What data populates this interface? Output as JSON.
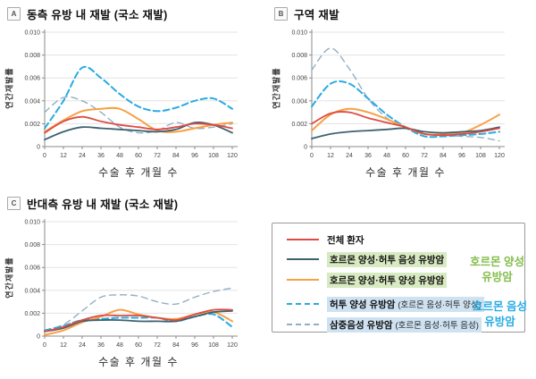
{
  "colors": {
    "red": "#DE4B43",
    "slate": "#3E616F",
    "orange": "#F6A145",
    "blue": "#29ABE2",
    "grayblue": "#92AFC2",
    "green_text": "#85BE4E",
    "blue_text": "#2AACE3",
    "green_highlight": "#D8EAC1",
    "blue_highlight": "#CFE2F1",
    "axis": "#8A8A8A",
    "grid": "#E3E3E3",
    "tick_text": "#444444"
  },
  "legend": {
    "items": [
      {
        "key": "all",
        "label": "전체 환자",
        "sublabel": "",
        "color_key": "red",
        "dash": "",
        "width": 1.8,
        "highlight": ""
      },
      {
        "key": "hr_pos_her2_neg",
        "label": "호르몬 양성·허투 음성 유방암",
        "sublabel": "",
        "color_key": "slate",
        "dash": "",
        "width": 1.8,
        "highlight": "green"
      },
      {
        "key": "hr_pos_her2_pos",
        "label": "호르몬 양성·허투 양성 유방암",
        "sublabel": "",
        "color_key": "orange",
        "dash": "",
        "width": 2,
        "highlight": "green"
      },
      {
        "key": "her2_pos",
        "label": "허투 양성 유방암",
        "sublabel": "(호르몬 음성·허투 양성)",
        "color_key": "blue",
        "dash": "7 4",
        "width": 2,
        "highlight": "blue"
      },
      {
        "key": "tnbc",
        "label": "삼중음성 유방암",
        "sublabel": "(호르몬 음성·허투 음성)",
        "color_key": "grayblue",
        "dash": "7 5",
        "width": 1.4,
        "highlight": "blue"
      }
    ],
    "annotations": {
      "hormone_positive": {
        "line1": "호르몬 양성",
        "line2": "유방암",
        "color_key": "green_text"
      },
      "hormone_negative": {
        "line1": "호르몬 음성",
        "line2": "유방암",
        "color_key": "blue_text"
      }
    }
  },
  "chart_data": [
    {
      "type": "line",
      "panel_label": "A",
      "title": "동측 유방 내 재발 (국소 재발)",
      "xlabel": "수술 후 개월 수",
      "ylabel": "연간재발률",
      "x": [
        0,
        12,
        24,
        36,
        48,
        60,
        72,
        84,
        96,
        108,
        120
      ],
      "xlim": [
        0,
        120
      ],
      "ylim": [
        0,
        0.01
      ],
      "yticks": [
        0,
        0.002,
        0.004,
        0.006,
        0.008,
        0.01
      ],
      "grid": true,
      "legend_position": "external-box",
      "series": [
        {
          "key": "tnbc",
          "name": "삼중음성 유방암 (호르몬 음성·허투 음성)",
          "values": [
            0.003,
            0.0043,
            0.004,
            0.003,
            0.0017,
            0.0012,
            0.0014,
            0.0021,
            0.0016,
            0.0017,
            0.002
          ]
        },
        {
          "key": "her2_pos",
          "name": "허투 양성 유방암 (호르몬 음성·허투 양성)",
          "values": [
            0.0016,
            0.004,
            0.0069,
            0.006,
            0.0046,
            0.0035,
            0.0031,
            0.0034,
            0.004,
            0.0042,
            0.0033
          ]
        },
        {
          "key": "hr_pos_her2_pos",
          "name": "호르몬 양성·허투 양성 유방암",
          "values": [
            0.0013,
            0.0023,
            0.0031,
            0.0033,
            0.0033,
            0.0024,
            0.0014,
            0.0013,
            0.0016,
            0.0019,
            0.0021
          ]
        },
        {
          "key": "hr_pos_her2_neg",
          "name": "호르몬 양성·허투 음성 유방암",
          "values": [
            0.0006,
            0.0013,
            0.0017,
            0.0016,
            0.0015,
            0.0014,
            0.0013,
            0.0015,
            0.0021,
            0.0019,
            0.0012
          ]
        },
        {
          "key": "all",
          "name": "전체 환자",
          "values": [
            0.0012,
            0.0022,
            0.0026,
            0.0022,
            0.0019,
            0.0017,
            0.0015,
            0.0017,
            0.002,
            0.0019,
            0.0016
          ]
        }
      ]
    },
    {
      "type": "line",
      "panel_label": "B",
      "title": "구역 재발",
      "xlabel": "수술 후 개월 수",
      "ylabel": "연간재발률",
      "x": [
        0,
        12,
        24,
        36,
        48,
        60,
        72,
        84,
        96,
        108,
        120
      ],
      "xlim": [
        0,
        120
      ],
      "ylim": [
        0,
        0.01
      ],
      "yticks": [
        0,
        0.002,
        0.004,
        0.006,
        0.008,
        0.01
      ],
      "grid": true,
      "legend_position": "external-box",
      "series": [
        {
          "key": "tnbc",
          "name": "삼중음성 유방암 (호르몬 음성·허투 음성)",
          "values": [
            0.0067,
            0.0086,
            0.0068,
            0.0042,
            0.0025,
            0.0016,
            0.0011,
            0.001,
            0.0009,
            0.0008,
            0.0005
          ]
        },
        {
          "key": "her2_pos",
          "name": "허투 양성 유방암 (호르몬 음성·허투 양성)",
          "values": [
            0.0035,
            0.0055,
            0.0055,
            0.0042,
            0.0028,
            0.0017,
            0.0009,
            0.0009,
            0.001,
            0.0011,
            0.0013
          ]
        },
        {
          "key": "hr_pos_her2_pos",
          "name": "호르몬 양성·허투 양성 유방암",
          "values": [
            0.0014,
            0.0028,
            0.0033,
            0.003,
            0.0024,
            0.0017,
            0.0011,
            0.0011,
            0.0012,
            0.0019,
            0.0028
          ]
        },
        {
          "key": "hr_pos_her2_neg",
          "name": "호르몬 양성·허투 음성 유방암",
          "values": [
            0.0007,
            0.0011,
            0.0013,
            0.0014,
            0.0015,
            0.0016,
            0.0013,
            0.0012,
            0.0013,
            0.0014,
            0.0017
          ]
        },
        {
          "key": "all",
          "name": "전체 환자",
          "values": [
            0.002,
            0.0029,
            0.003,
            0.0025,
            0.0021,
            0.0017,
            0.0011,
            0.001,
            0.0011,
            0.0013,
            0.0016
          ]
        }
      ]
    },
    {
      "type": "line",
      "panel_label": "C",
      "title": "반대측 유방 내 재발 (국소 재발)",
      "xlabel": "수술 후 개월 수",
      "ylabel": "연간재발률",
      "x": [
        0,
        12,
        24,
        36,
        48,
        60,
        72,
        84,
        96,
        108,
        120
      ],
      "xlim": [
        0,
        120
      ],
      "ylim": [
        0,
        0.01
      ],
      "yticks": [
        0,
        0.002,
        0.004,
        0.006,
        0.008,
        0.01
      ],
      "grid": true,
      "legend_position": "external-box",
      "series": [
        {
          "key": "tnbc",
          "name": "삼중음성 유방암 (호르몬 음성·허투 음성)",
          "values": [
            0.0005,
            0.001,
            0.0022,
            0.0034,
            0.0036,
            0.0035,
            0.003,
            0.0028,
            0.0034,
            0.0039,
            0.0042
          ]
        },
        {
          "key": "her2_pos",
          "name": "허투 양성 유방암 (호르몬 음성·허투 양성)",
          "values": [
            0.0005,
            0.0009,
            0.0014,
            0.0015,
            0.0016,
            0.0016,
            0.0016,
            0.0013,
            0.0017,
            0.0019,
            0.0008
          ]
        },
        {
          "key": "hr_pos_her2_pos",
          "name": "호르몬 양성·허투 양성 유방암",
          "values": [
            0.0001,
            0.0005,
            0.0012,
            0.0017,
            0.0023,
            0.0019,
            0.0016,
            0.0015,
            0.0019,
            0.0021,
            0.0013
          ]
        },
        {
          "key": "hr_pos_her2_neg",
          "name": "호르몬 양성·허투 음성 유방암",
          "values": [
            0.0004,
            0.0007,
            0.0013,
            0.0014,
            0.0014,
            0.0013,
            0.0013,
            0.0013,
            0.0017,
            0.0021,
            0.0022
          ]
        },
        {
          "key": "all",
          "name": "전체 환자",
          "values": [
            0.0004,
            0.0008,
            0.0014,
            0.0018,
            0.0018,
            0.0018,
            0.0016,
            0.0014,
            0.0019,
            0.0023,
            0.0023
          ]
        }
      ]
    }
  ]
}
